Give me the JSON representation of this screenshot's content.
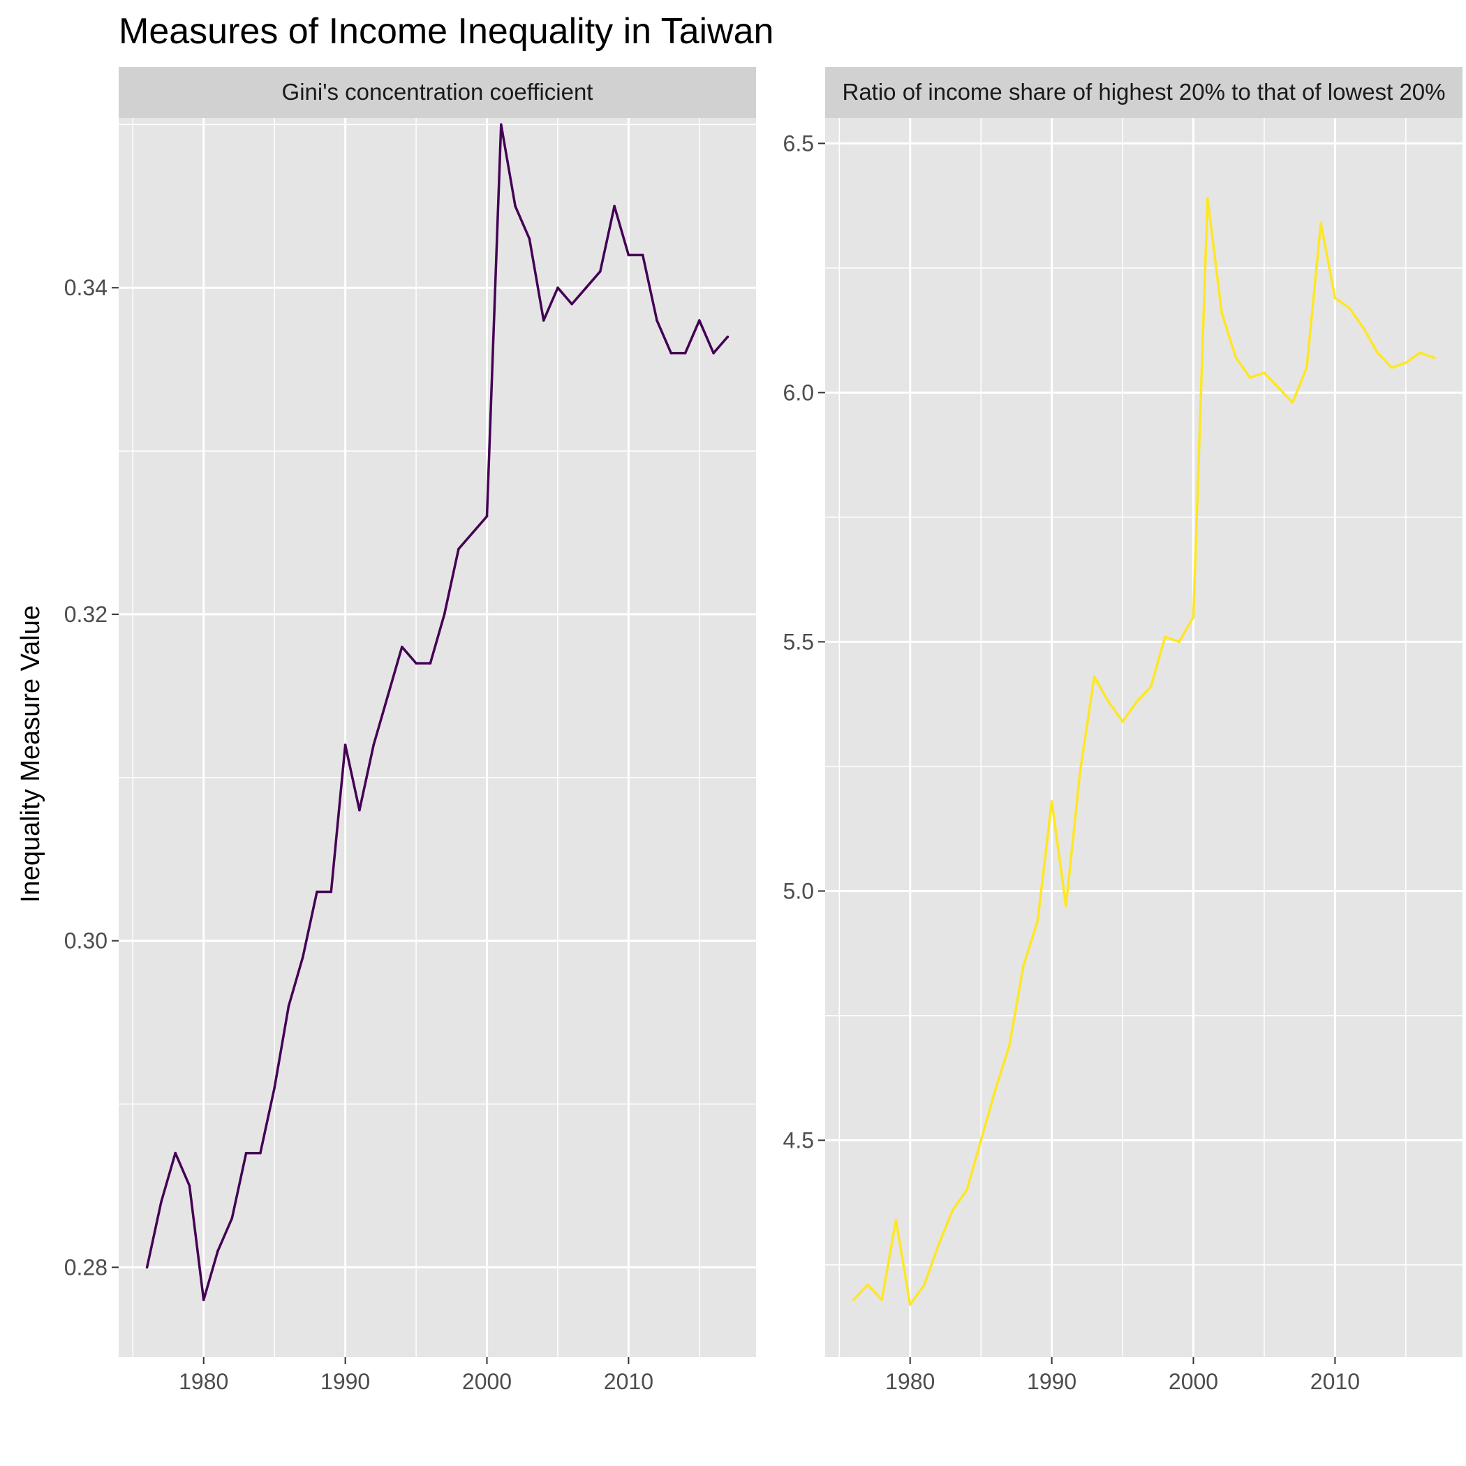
{
  "title": "Measures of Income Inequality in Taiwan",
  "ylabel": "Inequality Measure Value",
  "colors": {
    "panel_bg": "#E5E5E5",
    "strip_bg": "#D1D1D1",
    "grid": "#FFFFFF",
    "tick": "#333333"
  },
  "chart_data": [
    {
      "type": "line",
      "facet_label": "Gini's concentration coefficient",
      "color": "#440154",
      "xlim": [
        1974,
        2019
      ],
      "ylim": [
        0.2745,
        0.3504
      ],
      "x_ticks": [
        1980,
        1990,
        2000,
        2010
      ],
      "y_ticks": [
        0.28,
        0.3,
        0.32,
        0.34
      ],
      "y_tick_labels": [
        "0.28",
        "0.30",
        "0.32",
        "0.34"
      ],
      "x_tick_labels": [
        "1980",
        "1990",
        "2000",
        "2010"
      ],
      "x": [
        1976,
        1977,
        1978,
        1979,
        1980,
        1981,
        1982,
        1983,
        1984,
        1985,
        1986,
        1987,
        1988,
        1989,
        1990,
        1991,
        1992,
        1993,
        1994,
        1995,
        1996,
        1997,
        1998,
        1999,
        2000,
        2001,
        2002,
        2003,
        2004,
        2005,
        2006,
        2007,
        2008,
        2009,
        2010,
        2011,
        2012,
        2013,
        2014,
        2015,
        2016,
        2017
      ],
      "y": [
        0.28,
        0.284,
        0.287,
        0.285,
        0.278,
        0.281,
        0.283,
        0.287,
        0.287,
        0.291,
        0.296,
        0.299,
        0.303,
        0.303,
        0.312,
        0.308,
        0.312,
        0.315,
        0.318,
        0.317,
        0.317,
        0.32,
        0.324,
        0.325,
        0.326,
        0.35,
        0.345,
        0.343,
        0.338,
        0.34,
        0.339,
        0.34,
        0.341,
        0.345,
        0.342,
        0.342,
        0.338,
        0.336,
        0.336,
        0.338,
        0.336,
        0.337
      ]
    },
    {
      "type": "line",
      "facet_label": "Ratio of income share of highest 20% to that of lowest 20%",
      "color": "#FDE725",
      "xlim": [
        1974,
        2019
      ],
      "ylim": [
        4.065,
        6.551
      ],
      "x_ticks": [
        1980,
        1990,
        2000,
        2010
      ],
      "y_ticks": [
        4.5,
        5.0,
        5.5,
        6.0,
        6.5
      ],
      "y_tick_labels": [
        "4.5",
        "5.0",
        "5.5",
        "6.0",
        "6.5"
      ],
      "x_tick_labels": [
        "1980",
        "1990",
        "2000",
        "2010"
      ],
      "x": [
        1976,
        1977,
        1978,
        1979,
        1980,
        1981,
        1982,
        1983,
        1984,
        1985,
        1986,
        1987,
        1988,
        1989,
        1990,
        1991,
        1992,
        1993,
        1994,
        1995,
        1996,
        1997,
        1998,
        1999,
        2000,
        2001,
        2002,
        2003,
        2004,
        2005,
        2006,
        2007,
        2008,
        2009,
        2010,
        2011,
        2012,
        2013,
        2014,
        2015,
        2016,
        2017
      ],
      "y": [
        4.18,
        4.21,
        4.18,
        4.34,
        4.17,
        4.21,
        4.29,
        4.36,
        4.4,
        4.5,
        4.6,
        4.69,
        4.85,
        4.94,
        5.18,
        4.97,
        5.24,
        5.43,
        5.38,
        5.34,
        5.38,
        5.41,
        5.51,
        5.5,
        5.55,
        6.39,
        6.16,
        6.07,
        6.03,
        6.04,
        6.01,
        5.98,
        6.05,
        6.34,
        6.19,
        6.17,
        6.13,
        6.08,
        6.05,
        6.06,
        6.08,
        6.07
      ]
    }
  ]
}
